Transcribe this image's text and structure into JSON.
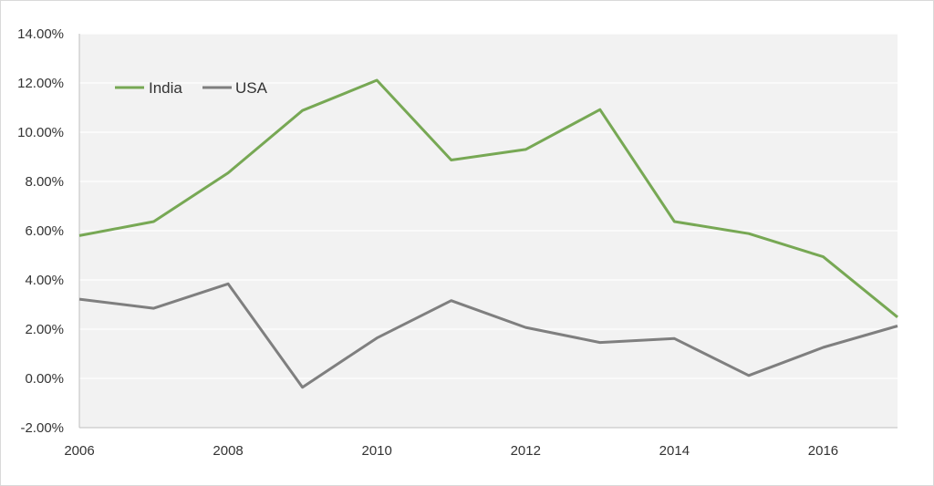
{
  "chart_data": {
    "type": "line",
    "title": "",
    "xlabel": "",
    "ylabel": "",
    "x": [
      2006,
      2007,
      2008,
      2009,
      2010,
      2011,
      2012,
      2013,
      2014,
      2015,
      2016,
      2017
    ],
    "xlim": [
      2006,
      2017
    ],
    "ylim": [
      -2,
      14
    ],
    "x_ticks": [
      "2006",
      "2008",
      "2010",
      "2012",
      "2014",
      "2016"
    ],
    "x_tick_values": [
      2006,
      2008,
      2010,
      2012,
      2014,
      2016
    ],
    "y_ticks": [
      "-2.00%",
      "0.00%",
      "2.00%",
      "4.00%",
      "6.00%",
      "8.00%",
      "10.00%",
      "12.00%",
      "14.00%"
    ],
    "y_tick_values": [
      -2,
      0,
      2,
      4,
      6,
      8,
      10,
      12,
      14
    ],
    "grid": true,
    "legend_position": "top-left",
    "series": [
      {
        "name": "India",
        "color": "#77a854",
        "values": [
          5.8,
          6.37,
          8.35,
          10.88,
          12.11,
          8.87,
          9.3,
          10.92,
          6.37,
          5.88,
          4.94,
          2.49
        ]
      },
      {
        "name": "USA",
        "color": "#7f7f7f",
        "values": [
          3.22,
          2.85,
          3.84,
          -0.36,
          1.64,
          3.16,
          2.07,
          1.46,
          1.62,
          0.12,
          1.26,
          2.13
        ]
      }
    ]
  }
}
